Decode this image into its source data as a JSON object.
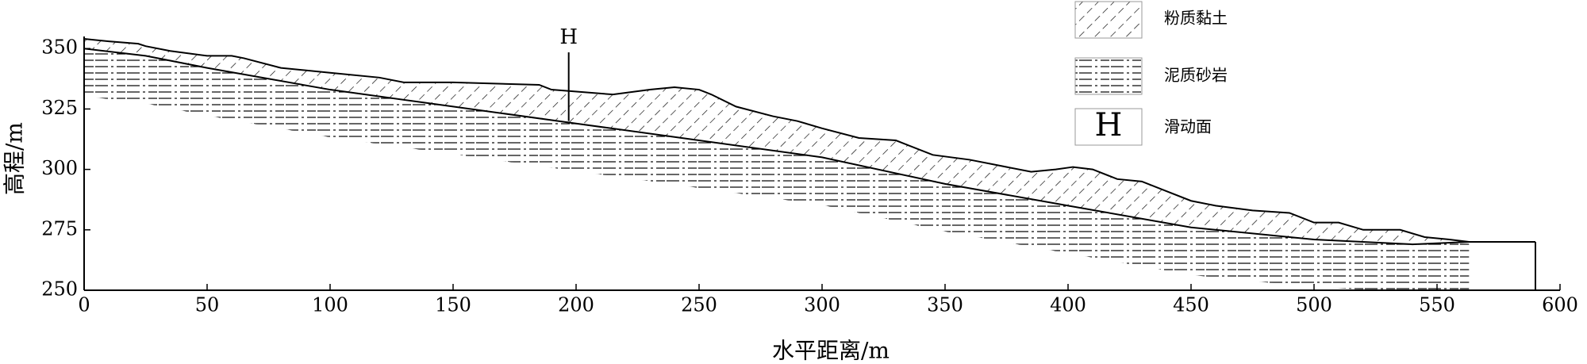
{
  "chart_data": {
    "type": "profile",
    "xlabel": "水平距离/m",
    "ylabel": "高程/m",
    "xlim": [
      0,
      600
    ],
    "ylim": [
      250,
      355
    ],
    "xticks": [
      0,
      50,
      100,
      150,
      200,
      250,
      300,
      350,
      400,
      450,
      500,
      550,
      600
    ],
    "yticks": [
      250,
      275,
      300,
      325,
      350
    ],
    "series": [
      {
        "color": "#000000",
        "x": [
          0,
          10,
          22,
          25,
          35,
          50,
          60,
          65,
          80,
          100,
          120,
          130,
          150,
          185,
          190,
          215,
          230,
          240,
          250,
          255,
          265,
          280,
          290,
          300,
          315,
          330,
          345,
          360,
          370,
          385,
          395,
          402,
          410,
          420,
          430,
          440,
          450,
          460,
          475,
          490,
          500,
          510,
          520,
          535,
          545,
          555,
          563,
          590
        ],
        "values": [
          354,
          353,
          352,
          351,
          349,
          347,
          347,
          346,
          342,
          340,
          338,
          336,
          336,
          335,
          333,
          331,
          333,
          334,
          333,
          331,
          326,
          322,
          320,
          317,
          313,
          312,
          306,
          304,
          302,
          299,
          300,
          301,
          300,
          296,
          295,
          291,
          287,
          285,
          283,
          282,
          278,
          278,
          275,
          275,
          272,
          271,
          270,
          270
        ]
      },
      {
        "color": "#000000",
        "x": [
          0,
          25,
          50,
          100,
          150,
          200,
          250,
          300,
          350,
          400,
          450,
          500,
          540,
          563
        ],
        "values": [
          350,
          347,
          342,
          333,
          326,
          319,
          312,
          305,
          294,
          285,
          276,
          271,
          269,
          270
        ]
      }
    ],
    "legend": [
      "粉质黏土",
      "泥质砂岩",
      "滑动面"
    ],
    "annotation": {
      "text": "H",
      "x": 197,
      "y": 320
    }
  }
}
